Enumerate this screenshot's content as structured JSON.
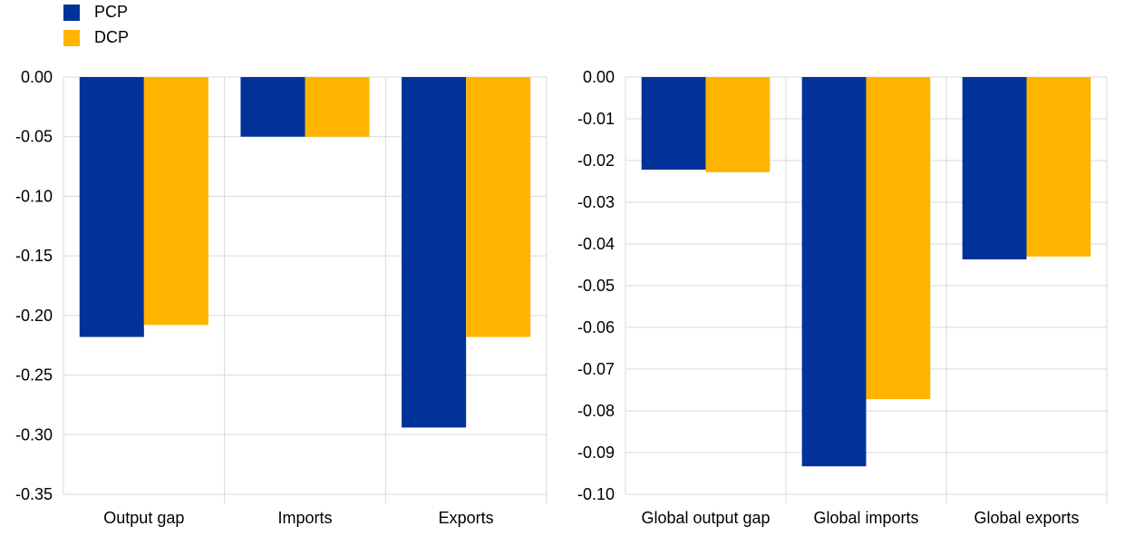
{
  "legend": [
    {
      "label": "PCP",
      "color": "#003299"
    },
    {
      "label": "DCP",
      "color": "#FFB400"
    }
  ],
  "chart_data": [
    {
      "type": "bar",
      "categories": [
        "Output gap",
        "Imports",
        "Exports"
      ],
      "series": [
        {
          "name": "PCP",
          "values": [
            -0.218,
            -0.05,
            -0.294
          ]
        },
        {
          "name": "DCP",
          "values": [
            -0.208,
            -0.05,
            -0.218
          ]
        }
      ],
      "ylim": [
        -0.35,
        0
      ],
      "yticks": [
        "0.00",
        "-0.05",
        "-0.10",
        "-0.15",
        "-0.20",
        "-0.25",
        "-0.30",
        "-0.35"
      ],
      "grid": true
    },
    {
      "type": "bar",
      "categories": [
        "Global output gap",
        "Global imports",
        "Global exports"
      ],
      "series": [
        {
          "name": "PCP",
          "values": [
            -0.0222,
            -0.0933,
            -0.0437
          ]
        },
        {
          "name": "DCP",
          "values": [
            -0.0228,
            -0.0772,
            -0.043
          ]
        }
      ],
      "ylim": [
        -0.1,
        0
      ],
      "yticks": [
        "0.00",
        "-0.01",
        "-0.02",
        "-0.03",
        "-0.04",
        "-0.05",
        "-0.06",
        "-0.07",
        "-0.08",
        "-0.09",
        "-0.10"
      ],
      "grid": true
    }
  ]
}
